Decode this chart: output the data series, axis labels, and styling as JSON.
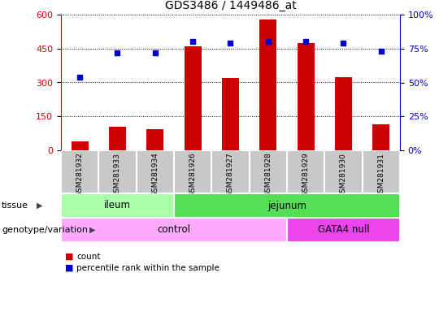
{
  "title": "GDS3486 / 1449486_at",
  "samples": [
    "GSM281932",
    "GSM281933",
    "GSM281934",
    "GSM281926",
    "GSM281927",
    "GSM281928",
    "GSM281929",
    "GSM281930",
    "GSM281931"
  ],
  "counts": [
    40,
    105,
    95,
    460,
    318,
    578,
    473,
    323,
    115
  ],
  "percentile_ranks": [
    54,
    72,
    72,
    80,
    79,
    80,
    80,
    79,
    73
  ],
  "bar_color": "#cc0000",
  "dot_color": "#0000cc",
  "ylim_left": [
    0,
    600
  ],
  "ylim_right": [
    0,
    100
  ],
  "yticks_left": [
    0,
    150,
    300,
    450,
    600
  ],
  "ytick_labels_left": [
    "0",
    "150",
    "300",
    "450",
    "600"
  ],
  "yticks_right": [
    0,
    25,
    50,
    75,
    100
  ],
  "ytick_labels_right": [
    "0%",
    "25%",
    "50%",
    "75%",
    "100%"
  ],
  "tissue_labels": [
    {
      "label": "ileum",
      "start": 0,
      "end": 3,
      "color": "#aaffaa"
    },
    {
      "label": "jejunum",
      "start": 3,
      "end": 9,
      "color": "#55dd55"
    }
  ],
  "genotype_labels": [
    {
      "label": "control",
      "start": 0,
      "end": 6,
      "color": "#ffaaff"
    },
    {
      "label": "GATA4 null",
      "start": 6,
      "end": 9,
      "color": "#ee44ee"
    }
  ],
  "tissue_row_label": "tissue",
  "genotype_row_label": "genotype/variation",
  "legend_count_label": "count",
  "legend_pct_label": "percentile rank within the sample",
  "tick_bg_color": "#c8c8c8",
  "tick_sep_color": "#ffffff",
  "bar_width": 0.45
}
